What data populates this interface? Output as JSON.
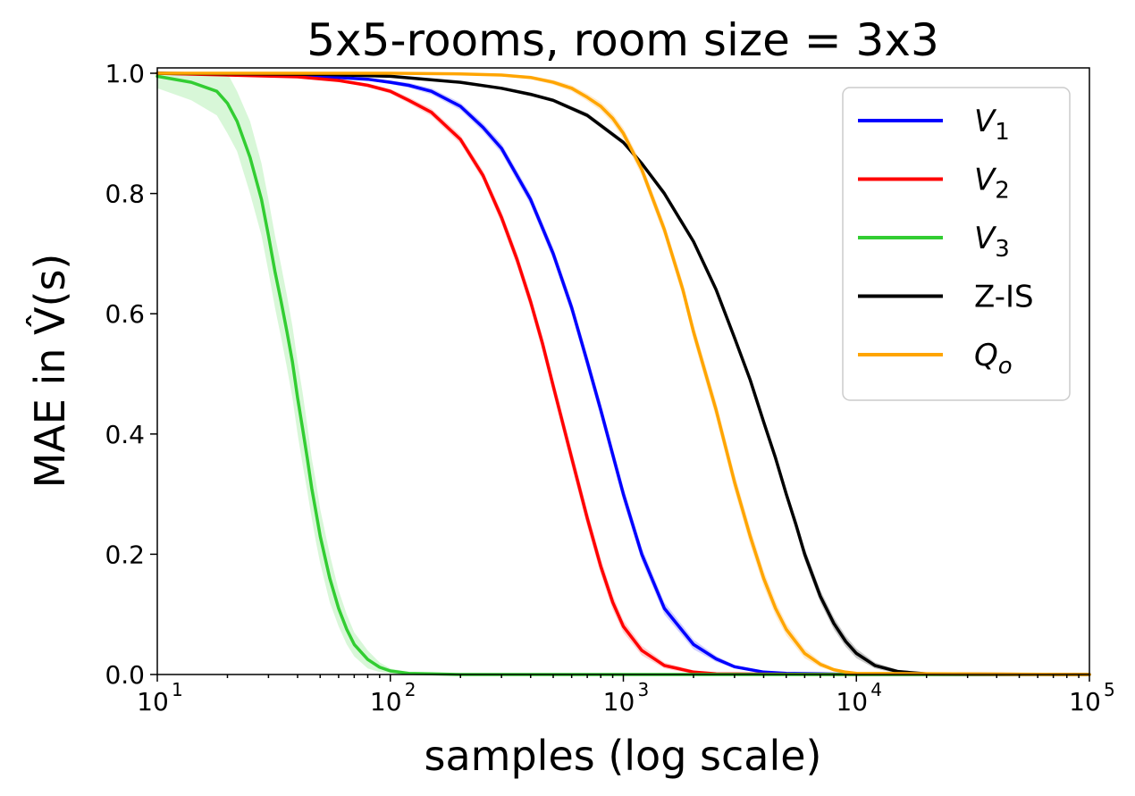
{
  "chart_data": {
    "type": "line",
    "title": "5x5-rooms, room size = 3x3",
    "xlabel": "samples (log scale)",
    "ylabel": "MAE in V̂(s)",
    "xscale": "log",
    "xlim": [
      10,
      100000
    ],
    "ylim": [
      0.0,
      1.0
    ],
    "x_ticks": [
      10,
      100,
      1000,
      10000,
      100000
    ],
    "x_tick_labels": [
      {
        "base": "10",
        "exp": "1"
      },
      {
        "base": "10",
        "exp": "2"
      },
      {
        "base": "10",
        "exp": "3"
      },
      {
        "base": "10",
        "exp": "4"
      },
      {
        "base": "10",
        "exp": "5"
      }
    ],
    "y_ticks": [
      "0.0",
      "0.2",
      "0.4",
      "0.6",
      "0.8",
      "1.0"
    ],
    "grid": false,
    "legend_position": "top-right",
    "series": [
      {
        "name": "V",
        "subscript": "1",
        "italic": true,
        "color": "#0000ff",
        "band_color": "#a8a8ff",
        "x": [
          10,
          40,
          60,
          80,
          100,
          120,
          150,
          200,
          250,
          300,
          400,
          500,
          600,
          700,
          800,
          1000,
          1200,
          1500,
          2000,
          2500,
          3000,
          4000,
          5000,
          7000,
          10000,
          100000
        ],
        "y": [
          1.0,
          0.996,
          0.993,
          0.99,
          0.985,
          0.98,
          0.97,
          0.945,
          0.91,
          0.875,
          0.79,
          0.7,
          0.61,
          0.52,
          0.44,
          0.3,
          0.2,
          0.11,
          0.05,
          0.026,
          0.013,
          0.004,
          0.002,
          0.001,
          0.0,
          0.0
        ],
        "band": [
          0.0,
          0.0,
          0.0,
          0.002,
          0.003,
          0.004,
          0.005,
          0.006,
          0.007,
          0.008,
          0.009,
          0.01,
          0.011,
          0.012,
          0.012,
          0.012,
          0.011,
          0.01,
          0.008,
          0.005,
          0.003,
          0.002,
          0.001,
          0.0,
          0.0,
          0.0
        ]
      },
      {
        "name": "V",
        "subscript": "2",
        "italic": true,
        "color": "#ff0000",
        "band_color": "#ffaaaa",
        "x": [
          10,
          40,
          60,
          80,
          100,
          120,
          150,
          200,
          250,
          300,
          350,
          400,
          450,
          500,
          600,
          700,
          800,
          900,
          1000,
          1200,
          1500,
          2000,
          2500,
          10000,
          100000
        ],
        "y": [
          1.0,
          0.994,
          0.988,
          0.98,
          0.97,
          0.955,
          0.935,
          0.89,
          0.83,
          0.76,
          0.69,
          0.62,
          0.55,
          0.48,
          0.36,
          0.26,
          0.18,
          0.12,
          0.08,
          0.04,
          0.015,
          0.004,
          0.001,
          0.0,
          0.0
        ],
        "band": [
          0.0,
          0.0,
          0.002,
          0.003,
          0.004,
          0.005,
          0.006,
          0.007,
          0.008,
          0.01,
          0.011,
          0.012,
          0.013,
          0.013,
          0.014,
          0.014,
          0.013,
          0.012,
          0.01,
          0.008,
          0.005,
          0.003,
          0.001,
          0.0,
          0.0
        ]
      },
      {
        "name": "V",
        "subscript": "3",
        "italic": true,
        "color": "#32cd32",
        "band_color": "#b8f0b8",
        "x": [
          10,
          14,
          18,
          20,
          22,
          25,
          28,
          30,
          32,
          34,
          36,
          38,
          40,
          42,
          44,
          46,
          48,
          50,
          55,
          60,
          65,
          70,
          80,
          90,
          100,
          120,
          150,
          200,
          100000
        ],
        "y": [
          0.995,
          0.985,
          0.97,
          0.95,
          0.92,
          0.86,
          0.79,
          0.73,
          0.67,
          0.62,
          0.57,
          0.52,
          0.46,
          0.41,
          0.36,
          0.31,
          0.27,
          0.23,
          0.16,
          0.11,
          0.075,
          0.05,
          0.025,
          0.012,
          0.006,
          0.002,
          0.001,
          0.0,
          0.0
        ],
        "band": [
          0.02,
          0.03,
          0.04,
          0.05,
          0.05,
          0.06,
          0.06,
          0.06,
          0.06,
          0.06,
          0.06,
          0.06,
          0.06,
          0.06,
          0.055,
          0.05,
          0.05,
          0.045,
          0.04,
          0.03,
          0.025,
          0.02,
          0.015,
          0.008,
          0.004,
          0.002,
          0.001,
          0.0,
          0.0
        ]
      },
      {
        "name": "Z-IS",
        "subscript": "",
        "italic": false,
        "color": "#000000",
        "band_color": "#999999",
        "x": [
          10,
          50,
          100,
          200,
          300,
          400,
          500,
          700,
          1000,
          1200,
          1500,
          2000,
          2500,
          3000,
          3500,
          4000,
          4500,
          5000,
          5500,
          6000,
          7000,
          8000,
          9000,
          10000,
          12000,
          15000,
          20000,
          100000
        ],
        "y": [
          1.0,
          0.998,
          0.995,
          0.985,
          0.975,
          0.965,
          0.955,
          0.93,
          0.885,
          0.85,
          0.8,
          0.72,
          0.64,
          0.56,
          0.49,
          0.42,
          0.36,
          0.3,
          0.25,
          0.2,
          0.13,
          0.085,
          0.055,
          0.035,
          0.015,
          0.005,
          0.001,
          0.0
        ],
        "band": [
          0.0,
          0.0,
          0.0,
          0.002,
          0.002,
          0.003,
          0.003,
          0.004,
          0.004,
          0.004,
          0.005,
          0.005,
          0.006,
          0.006,
          0.007,
          0.007,
          0.008,
          0.008,
          0.009,
          0.01,
          0.01,
          0.01,
          0.009,
          0.008,
          0.005,
          0.003,
          0.001,
          0.0
        ]
      },
      {
        "name": "Q",
        "subscript": "o",
        "italic": true,
        "color": "#ffa500",
        "band_color": "#ffd9a0",
        "x": [
          10,
          100,
          200,
          300,
          400,
          500,
          600,
          700,
          800,
          900,
          1000,
          1200,
          1500,
          1800,
          2000,
          2500,
          3000,
          3500,
          4000,
          4500,
          5000,
          6000,
          7000,
          8000,
          9000,
          10000,
          100000
        ],
        "y": [
          1.0,
          1.0,
          0.999,
          0.997,
          0.993,
          0.985,
          0.975,
          0.96,
          0.945,
          0.925,
          0.9,
          0.84,
          0.74,
          0.64,
          0.57,
          0.44,
          0.32,
          0.23,
          0.16,
          0.11,
          0.075,
          0.035,
          0.017,
          0.008,
          0.004,
          0.002,
          0.0
        ],
        "band": [
          0.0,
          0.0,
          0.001,
          0.002,
          0.003,
          0.004,
          0.005,
          0.006,
          0.007,
          0.008,
          0.009,
          0.01,
          0.011,
          0.012,
          0.013,
          0.014,
          0.014,
          0.014,
          0.013,
          0.012,
          0.01,
          0.008,
          0.005,
          0.003,
          0.002,
          0.001,
          0.0
        ]
      }
    ]
  }
}
